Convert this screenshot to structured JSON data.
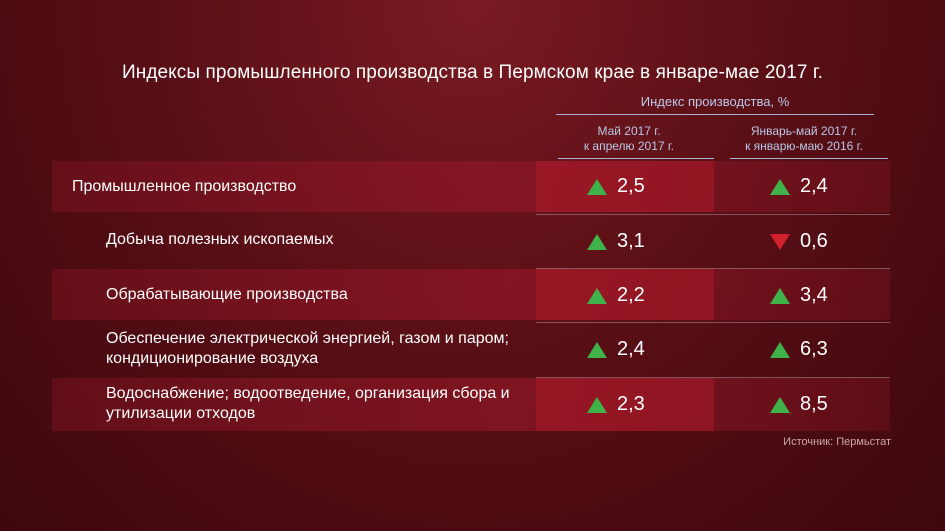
{
  "title": "Индексы промышленного производства в Пермском крае в январе-мае 2017 г.",
  "group_header": "Индекс производства, %",
  "columns": [
    {
      "line1": "Май 2017 г.",
      "line2": "к апрелю 2017 г."
    },
    {
      "line1": "Январь-май 2017 г.",
      "line2": "к январю-маю 2016 г."
    }
  ],
  "source": "Источник: Пермьстат",
  "colors": {
    "up": "#3fb34a",
    "down": "#d2202c"
  },
  "chart_data": {
    "type": "table",
    "title": "Индексы промышленного производства в Пермском крае в январе-мае 2017 г.",
    "columns": [
      "Май 2017 г. к апрелю 2017 г.",
      "Январь-май 2017 г. к январю-маю 2016 г."
    ],
    "rows": [
      {
        "label": "Промышленное производство",
        "values": [
          "2,5",
          "2,4"
        ],
        "direction": [
          "up",
          "up"
        ]
      },
      {
        "label": "Добыча полезных ископаемых",
        "values": [
          "3,1",
          "0,6"
        ],
        "direction": [
          "up",
          "down"
        ]
      },
      {
        "label": "Обрабатывающие производства",
        "values": [
          "2,2",
          "3,4"
        ],
        "direction": [
          "up",
          "up"
        ]
      },
      {
        "label": "Обеспечение электрической энергией, газом и паром; кондиционирование воздуха",
        "values": [
          "2,4",
          "6,3"
        ],
        "direction": [
          "up",
          "up"
        ]
      },
      {
        "label": "Водоснабжение; водоотведение, организация сбора и утилизации отходов",
        "values": [
          "2,3",
          "8,5"
        ],
        "direction": [
          "up",
          "up"
        ]
      }
    ]
  }
}
